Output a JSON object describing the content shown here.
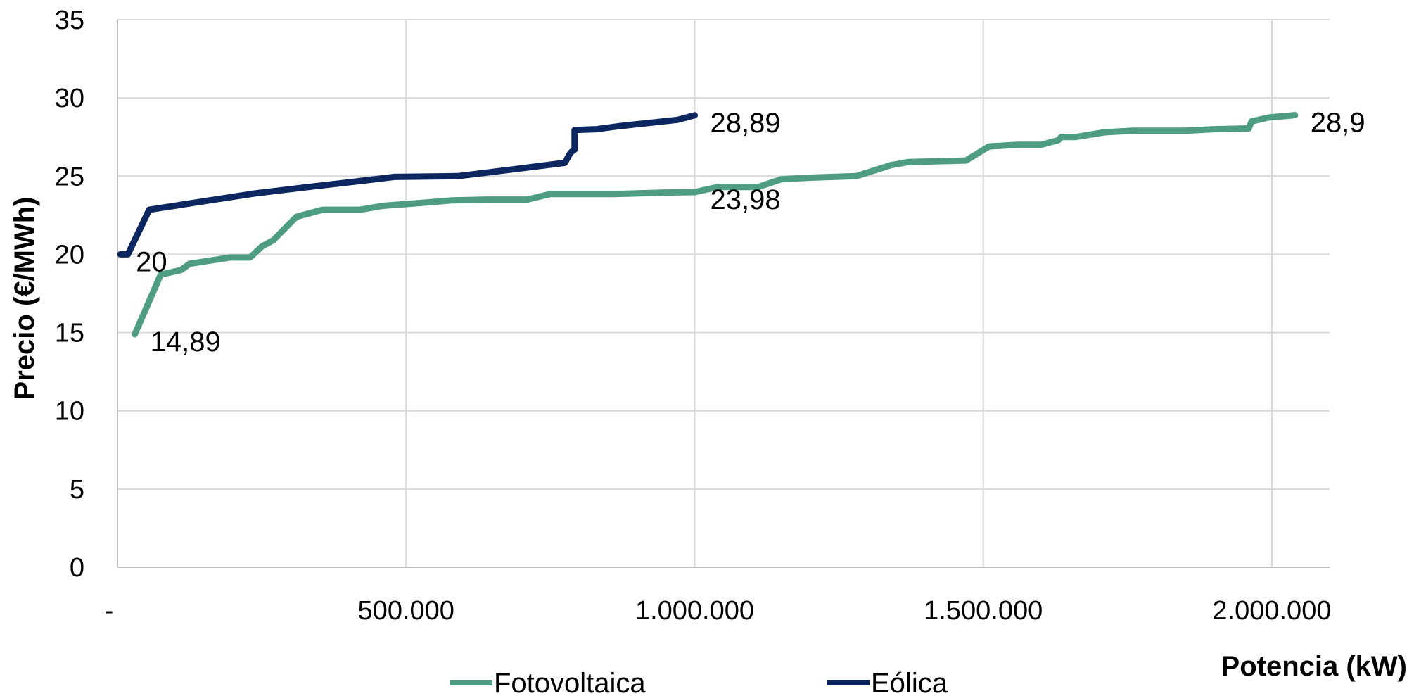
{
  "chart_data": {
    "type": "line",
    "xlabel": "Potencia (kW)",
    "ylabel": "Precio (€/MWh)",
    "xlim": [
      0,
      2100000
    ],
    "ylim": [
      0,
      35
    ],
    "x_ticks": [
      {
        "value": 0,
        "label": "-"
      },
      {
        "value": 500000,
        "label": "500.000"
      },
      {
        "value": 1000000,
        "label": "1.000.000"
      },
      {
        "value": 1500000,
        "label": "1.500.000"
      },
      {
        "value": 2000000,
        "label": "2.000.000"
      }
    ],
    "y_ticks": [
      {
        "value": 0,
        "label": "0"
      },
      {
        "value": 5,
        "label": "5"
      },
      {
        "value": 10,
        "label": "10"
      },
      {
        "value": 15,
        "label": "15"
      },
      {
        "value": 20,
        "label": "20"
      },
      {
        "value": 25,
        "label": "25"
      },
      {
        "value": 30,
        "label": "30"
      },
      {
        "value": 35,
        "label": "35"
      }
    ],
    "grid": true,
    "legend_position": "bottom",
    "series": [
      {
        "name": "Fotovoltaica",
        "color": "#4e9d82",
        "points": [
          [
            30000,
            14.89
          ],
          [
            75000,
            18.7
          ],
          [
            110000,
            19.0
          ],
          [
            125000,
            19.4
          ],
          [
            195000,
            19.8
          ],
          [
            230000,
            19.8
          ],
          [
            250000,
            20.5
          ],
          [
            270000,
            20.9
          ],
          [
            310000,
            22.4
          ],
          [
            355000,
            22.85
          ],
          [
            420000,
            22.85
          ],
          [
            460000,
            23.1
          ],
          [
            530000,
            23.3
          ],
          [
            580000,
            23.45
          ],
          [
            640000,
            23.5
          ],
          [
            710000,
            23.5
          ],
          [
            750000,
            23.85
          ],
          [
            860000,
            23.85
          ],
          [
            950000,
            23.95
          ],
          [
            1000000,
            23.98
          ],
          [
            1040000,
            24.3
          ],
          [
            1110000,
            24.3
          ],
          [
            1150000,
            24.8
          ],
          [
            1200000,
            24.9
          ],
          [
            1280000,
            25.0
          ],
          [
            1340000,
            25.7
          ],
          [
            1370000,
            25.9
          ],
          [
            1470000,
            26.0
          ],
          [
            1510000,
            26.9
          ],
          [
            1560000,
            27.0
          ],
          [
            1600000,
            27.0
          ],
          [
            1630000,
            27.3
          ],
          [
            1635000,
            27.5
          ],
          [
            1660000,
            27.5
          ],
          [
            1710000,
            27.8
          ],
          [
            1760000,
            27.9
          ],
          [
            1850000,
            27.9
          ],
          [
            1900000,
            28.0
          ],
          [
            1960000,
            28.05
          ],
          [
            1965000,
            28.5
          ],
          [
            1995000,
            28.75
          ],
          [
            2040000,
            28.9
          ]
        ],
        "labels": [
          {
            "x": 30000,
            "y": 14.89,
            "text": "14,89"
          },
          {
            "x": 1000000,
            "y": 23.98,
            "text": "23,98"
          },
          {
            "x": 2040000,
            "y": 28.9,
            "text": "28,9"
          }
        ]
      },
      {
        "name": "Eólica",
        "color": "#0c2660",
        "points": [
          [
            5000,
            20.0
          ],
          [
            18000,
            20.0
          ],
          [
            55000,
            22.85
          ],
          [
            150000,
            23.4
          ],
          [
            240000,
            23.9
          ],
          [
            330000,
            24.3
          ],
          [
            400000,
            24.6
          ],
          [
            480000,
            24.95
          ],
          [
            590000,
            25.0
          ],
          [
            700000,
            25.5
          ],
          [
            775000,
            25.85
          ],
          [
            785000,
            26.5
          ],
          [
            792000,
            26.7
          ],
          [
            792000,
            27.95
          ],
          [
            830000,
            28.0
          ],
          [
            870000,
            28.2
          ],
          [
            970000,
            28.6
          ],
          [
            1000000,
            28.89
          ]
        ],
        "labels": [
          {
            "x": 5000,
            "y": 20.0,
            "text": "20"
          },
          {
            "x": 1000000,
            "y": 28.89,
            "text": "28,89"
          }
        ]
      }
    ]
  }
}
